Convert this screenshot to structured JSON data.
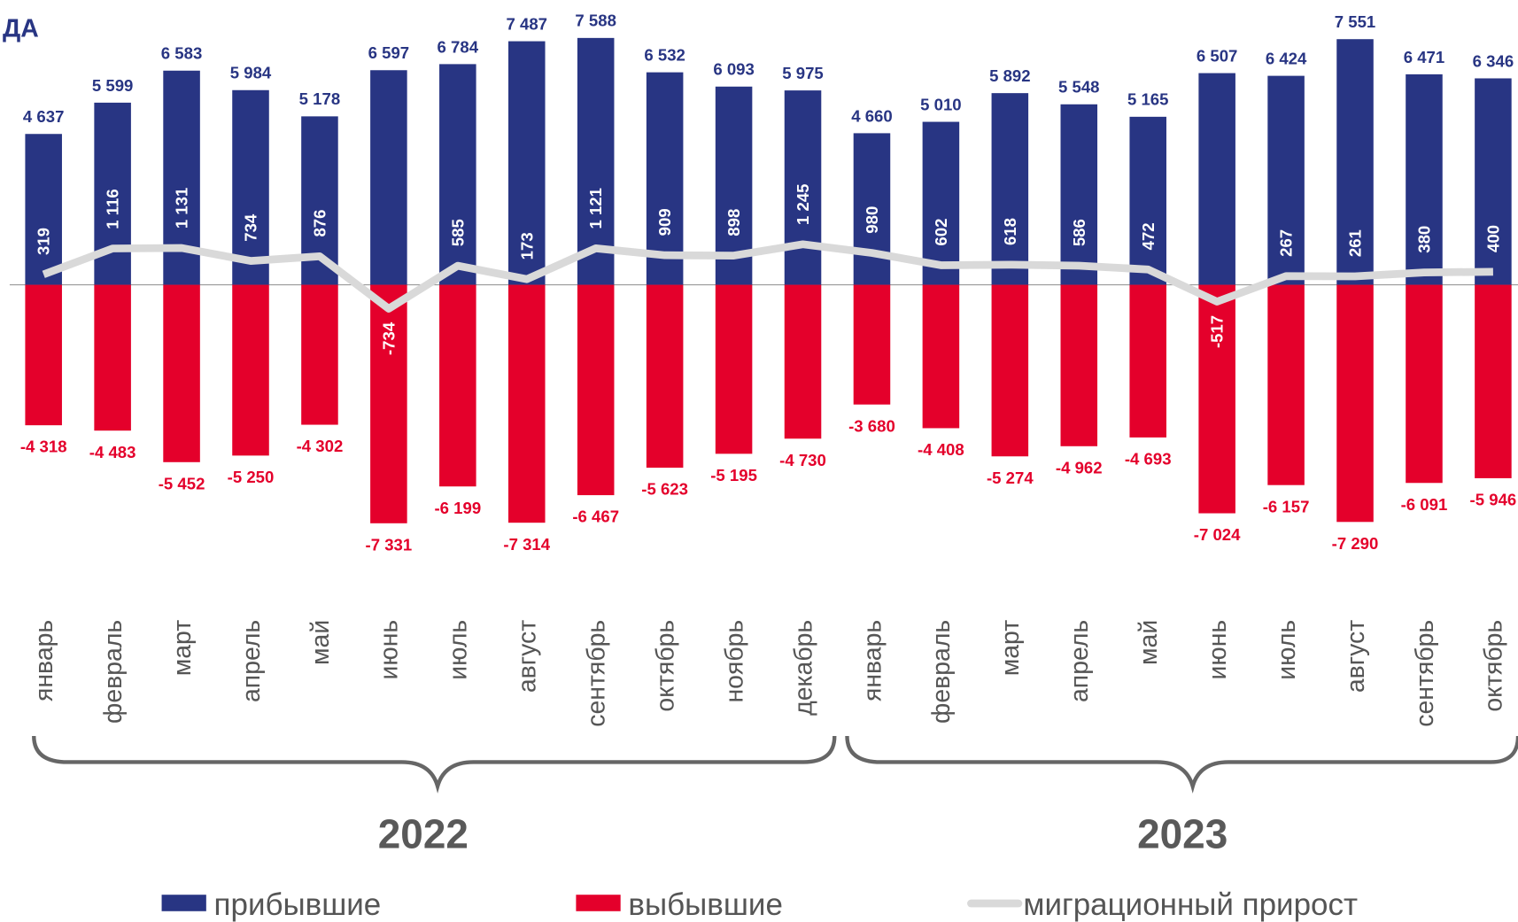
{
  "chart_data": {
    "type": "bar",
    "title": "ДА",
    "categories": [
      "январь",
      "февраль",
      "март",
      "апрель",
      "май",
      "июнь",
      "июль",
      "август",
      "сентябрь",
      "октябрь",
      "ноябрь",
      "декабрь",
      "январь",
      "февраль",
      "март",
      "апрель",
      "май",
      "июнь",
      "июль",
      "август",
      "сентябрь",
      "октябрь"
    ],
    "groups": [
      {
        "label": "2022",
        "from": 0,
        "to": 11
      },
      {
        "label": "2023",
        "from": 12,
        "to": 21
      }
    ],
    "ylim": [
      -8750,
      8750
    ],
    "series": [
      {
        "name": "прибывшие",
        "color": "#283583",
        "kind": "bar",
        "values": [
          4637,
          5599,
          6583,
          5984,
          5178,
          6597,
          6784,
          7487,
          7588,
          6532,
          6093,
          5975,
          4660,
          5010,
          5892,
          5548,
          5165,
          6507,
          6424,
          7551,
          6471,
          6346
        ],
        "value_labels": [
          "4 637",
          "5 599",
          "6 583",
          "5 984",
          "5 178",
          "6 597",
          "6 784",
          "7 487",
          "7 588",
          "6 532",
          "6 093",
          "5 975",
          "4 660",
          "5 010",
          "5 892",
          "5 548",
          "5 165",
          "6 507",
          "6 424",
          "7 551",
          "6 471",
          "6 346"
        ]
      },
      {
        "name": "выбывшие",
        "color": "#e4002b",
        "kind": "bar",
        "values": [
          -4318,
          -4483,
          -5452,
          -5250,
          -4302,
          -7331,
          -6199,
          -7314,
          -6467,
          -5623,
          -5195,
          -4730,
          -3680,
          -4408,
          -5274,
          -4962,
          -4693,
          -7024,
          -6157,
          -7290,
          -6091,
          -5946
        ],
        "value_labels": [
          "-4 318",
          "-4 483",
          "-5 452",
          "-5 250",
          "-4 302",
          "-7 331",
          "-6 199",
          "-7 314",
          "-6 467",
          "-5 623",
          "-5 195",
          "-4 730",
          "-3 680",
          "-4 408",
          "-5 274",
          "-4 962",
          "-4 693",
          "-7 024",
          "-6 157",
          "-7 290",
          "-6 091",
          "-5 946"
        ]
      },
      {
        "name": "миграционный прирост",
        "color": "#d9d9d9",
        "kind": "line",
        "values": [
          319,
          1116,
          1131,
          734,
          876,
          -734,
          585,
          173,
          1121,
          909,
          898,
          1245,
          980,
          602,
          618,
          586,
          472,
          -517,
          267,
          261,
          380,
          400
        ],
        "value_labels": [
          "319",
          "1 116",
          "1 131",
          "734",
          "876",
          "-734",
          "585",
          "173",
          "1 121",
          "909",
          "898",
          "1 245",
          "980",
          "602",
          "618",
          "586",
          "472",
          "-517",
          "267",
          "261",
          "380",
          "400"
        ]
      }
    ]
  }
}
